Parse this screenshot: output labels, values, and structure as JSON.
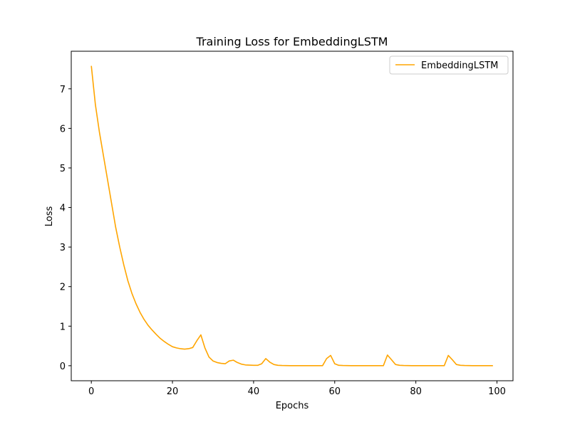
{
  "chart_data": {
    "type": "line",
    "title": "Training Loss for EmbeddingLSTM",
    "xlabel": "Epochs",
    "ylabel": "Loss",
    "xlim": [
      -4.95,
      103.95
    ],
    "ylim": [
      -0.38,
      7.95
    ],
    "xticks": [
      0,
      20,
      40,
      60,
      80,
      100
    ],
    "yticks": [
      0,
      1,
      2,
      3,
      4,
      5,
      6,
      7
    ],
    "grid": false,
    "legend": {
      "position": "top-right"
    },
    "series": [
      {
        "name": "EmbeddingLSTM",
        "color": "#ffa500",
        "x": [
          0,
          1,
          2,
          3,
          4,
          5,
          6,
          7,
          8,
          9,
          10,
          11,
          12,
          13,
          14,
          15,
          16,
          17,
          18,
          19,
          20,
          21,
          22,
          23,
          24,
          25,
          26,
          27,
          28,
          29,
          30,
          31,
          32,
          33,
          34,
          35,
          36,
          37,
          38,
          39,
          40,
          41,
          42,
          43,
          44,
          45,
          46,
          47,
          48,
          49,
          50,
          51,
          52,
          53,
          54,
          55,
          56,
          57,
          58,
          59,
          60,
          61,
          62,
          63,
          64,
          65,
          66,
          67,
          68,
          69,
          70,
          71,
          72,
          73,
          74,
          75,
          76,
          77,
          78,
          79,
          80,
          81,
          82,
          83,
          84,
          85,
          86,
          87,
          88,
          89,
          90,
          91,
          92,
          93,
          94,
          95,
          96,
          97,
          98,
          99
        ],
        "y": [
          7.58,
          6.6,
          5.9,
          5.3,
          4.7,
          4.1,
          3.5,
          3.0,
          2.55,
          2.15,
          1.83,
          1.57,
          1.35,
          1.17,
          1.02,
          0.9,
          0.79,
          0.69,
          0.61,
          0.54,
          0.48,
          0.45,
          0.43,
          0.42,
          0.43,
          0.46,
          0.63,
          0.78,
          0.45,
          0.22,
          0.12,
          0.08,
          0.06,
          0.05,
          0.12,
          0.14,
          0.08,
          0.04,
          0.02,
          0.015,
          0.01,
          0.01,
          0.05,
          0.18,
          0.09,
          0.03,
          0.01,
          0.005,
          0.003,
          0.002,
          0.002,
          0.001,
          0.001,
          0.001,
          0.001,
          0.001,
          0.001,
          0.001,
          0.18,
          0.26,
          0.05,
          0.01,
          0.005,
          0.003,
          0.002,
          0.001,
          0.001,
          0.001,
          0.001,
          0.001,
          0.001,
          0.001,
          0.001,
          0.27,
          0.15,
          0.03,
          0.01,
          0.005,
          0.003,
          0.002,
          0.001,
          0.001,
          0.001,
          0.001,
          0.001,
          0.001,
          0.001,
          0.001,
          0.26,
          0.15,
          0.03,
          0.01,
          0.005,
          0.003,
          0.002,
          0.001,
          0.001,
          0.001,
          0.001,
          0.001
        ]
      }
    ]
  }
}
